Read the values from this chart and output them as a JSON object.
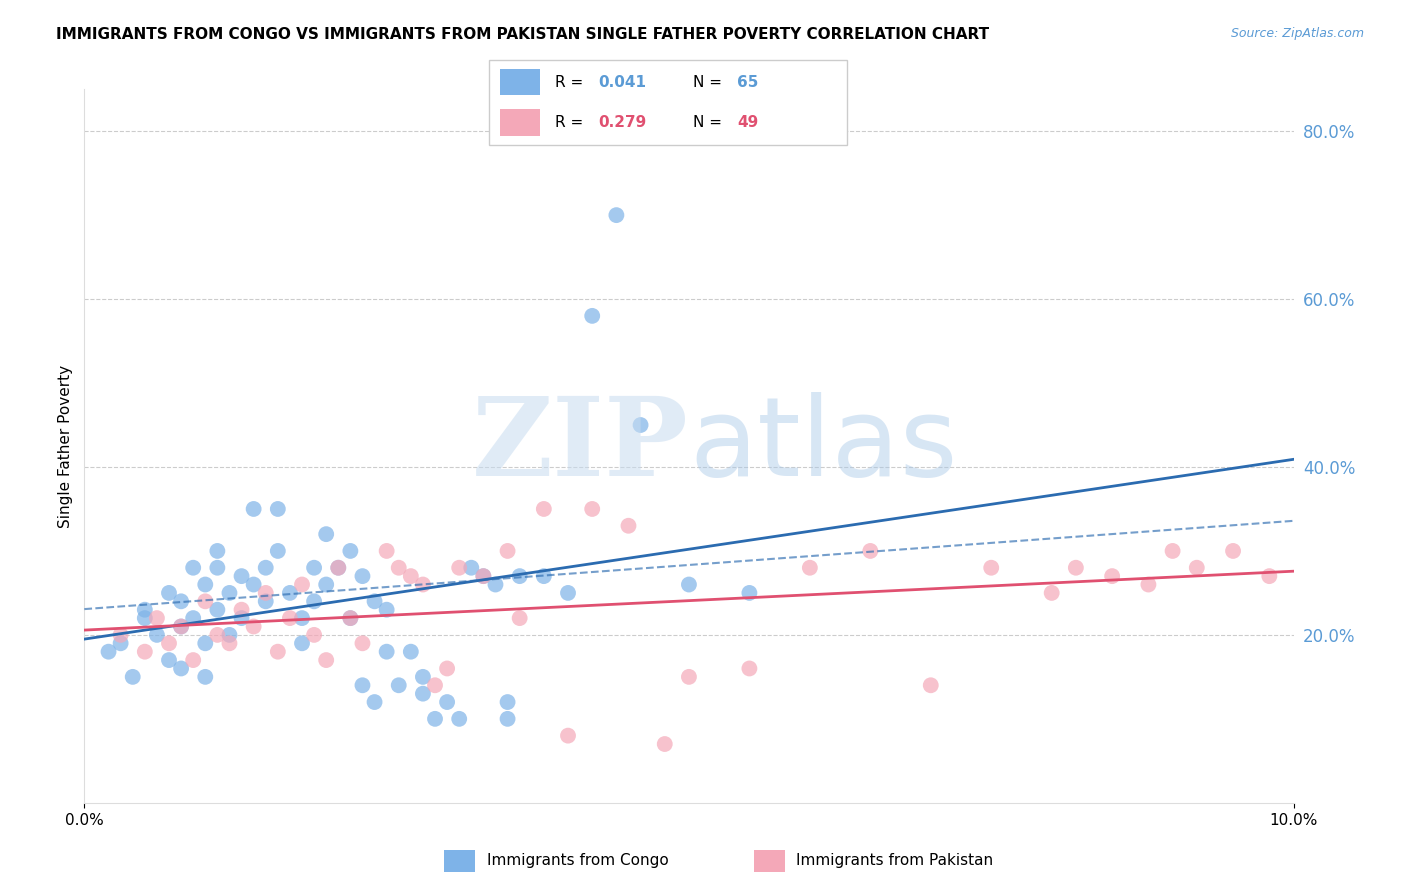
{
  "title": "IMMIGRANTS FROM CONGO VS IMMIGRANTS FROM PAKISTAN SINGLE FATHER POVERTY CORRELATION CHART",
  "source": "Source: ZipAtlas.com",
  "ylabel": "Single Father Poverty",
  "xlim": [
    0.0,
    0.1
  ],
  "ylim": [
    0.0,
    0.85
  ],
  "right_ytick_labels": [
    "20.0%",
    "40.0%",
    "60.0%",
    "80.0%"
  ],
  "right_ytick_values": [
    0.2,
    0.4,
    0.6,
    0.8
  ],
  "congo_R": 0.041,
  "congo_N": 65,
  "pakistan_R": 0.279,
  "pakistan_N": 49,
  "congo_color": "#7EB3E8",
  "pakistan_color": "#F4A8B8",
  "congo_line_color": "#2B6BB0",
  "pakistan_line_color": "#E05070",
  "congo_x": [
    0.002,
    0.003,
    0.004,
    0.005,
    0.005,
    0.006,
    0.007,
    0.007,
    0.008,
    0.008,
    0.008,
    0.009,
    0.009,
    0.01,
    0.01,
    0.01,
    0.011,
    0.011,
    0.011,
    0.012,
    0.012,
    0.013,
    0.013,
    0.014,
    0.014,
    0.015,
    0.015,
    0.016,
    0.016,
    0.017,
    0.018,
    0.018,
    0.019,
    0.019,
    0.02,
    0.02,
    0.021,
    0.022,
    0.022,
    0.023,
    0.023,
    0.024,
    0.024,
    0.025,
    0.025,
    0.026,
    0.027,
    0.028,
    0.028,
    0.029,
    0.03,
    0.031,
    0.032,
    0.033,
    0.034,
    0.035,
    0.035,
    0.036,
    0.038,
    0.04,
    0.042,
    0.044,
    0.046,
    0.05,
    0.055
  ],
  "congo_y": [
    0.18,
    0.19,
    0.15,
    0.22,
    0.23,
    0.2,
    0.25,
    0.17,
    0.21,
    0.24,
    0.16,
    0.28,
    0.22,
    0.19,
    0.26,
    0.15,
    0.3,
    0.28,
    0.23,
    0.25,
    0.2,
    0.27,
    0.22,
    0.35,
    0.26,
    0.28,
    0.24,
    0.35,
    0.3,
    0.25,
    0.22,
    0.19,
    0.24,
    0.28,
    0.32,
    0.26,
    0.28,
    0.3,
    0.22,
    0.27,
    0.14,
    0.24,
    0.12,
    0.23,
    0.18,
    0.14,
    0.18,
    0.15,
    0.13,
    0.1,
    0.12,
    0.1,
    0.28,
    0.27,
    0.26,
    0.12,
    0.1,
    0.27,
    0.27,
    0.25,
    0.58,
    0.7,
    0.45,
    0.26,
    0.25
  ],
  "pakistan_x": [
    0.003,
    0.005,
    0.006,
    0.007,
    0.008,
    0.009,
    0.01,
    0.011,
    0.012,
    0.013,
    0.014,
    0.015,
    0.016,
    0.017,
    0.018,
    0.019,
    0.02,
    0.021,
    0.022,
    0.023,
    0.025,
    0.026,
    0.027,
    0.028,
    0.029,
    0.03,
    0.031,
    0.033,
    0.035,
    0.036,
    0.038,
    0.04,
    0.042,
    0.045,
    0.048,
    0.05,
    0.055,
    0.06,
    0.065,
    0.07,
    0.075,
    0.08,
    0.082,
    0.085,
    0.088,
    0.09,
    0.092,
    0.095,
    0.098
  ],
  "pakistan_y": [
    0.2,
    0.18,
    0.22,
    0.19,
    0.21,
    0.17,
    0.24,
    0.2,
    0.19,
    0.23,
    0.21,
    0.25,
    0.18,
    0.22,
    0.26,
    0.2,
    0.17,
    0.28,
    0.22,
    0.19,
    0.3,
    0.28,
    0.27,
    0.26,
    0.14,
    0.16,
    0.28,
    0.27,
    0.3,
    0.22,
    0.35,
    0.08,
    0.35,
    0.33,
    0.07,
    0.15,
    0.16,
    0.28,
    0.3,
    0.14,
    0.28,
    0.25,
    0.28,
    0.27,
    0.26,
    0.3,
    0.28,
    0.3,
    0.27
  ]
}
